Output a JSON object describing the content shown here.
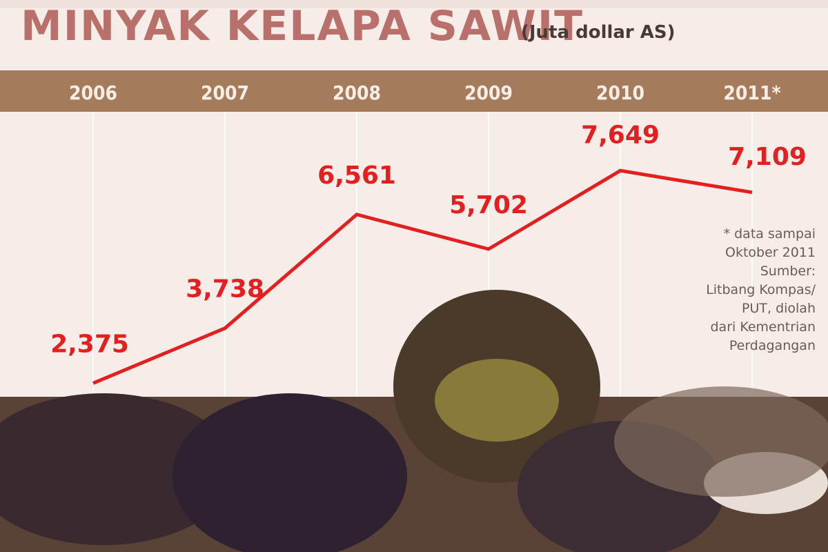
{
  "chart_data": {
    "type": "line",
    "title": "MINYAK KELAPA SAWIT",
    "subtitle": "(Juta dollar AS)",
    "categories": [
      "2006",
      "2007",
      "2008",
      "2009",
      "2010",
      "2011*"
    ],
    "values": [
      2375,
      3738,
      6561,
      5702,
      7649,
      7109
    ],
    "value_labels": [
      "2,375",
      "3,738",
      "6,561",
      "5,702",
      "7,649",
      "7,109"
    ],
    "color": "#e3201f",
    "notes": [
      "* data sampai",
      "Oktober 2011",
      "Sumber:",
      "Litbang Kompas/",
      "PUT, diolah",
      "dari Kementrian",
      "Perdagangan"
    ]
  }
}
